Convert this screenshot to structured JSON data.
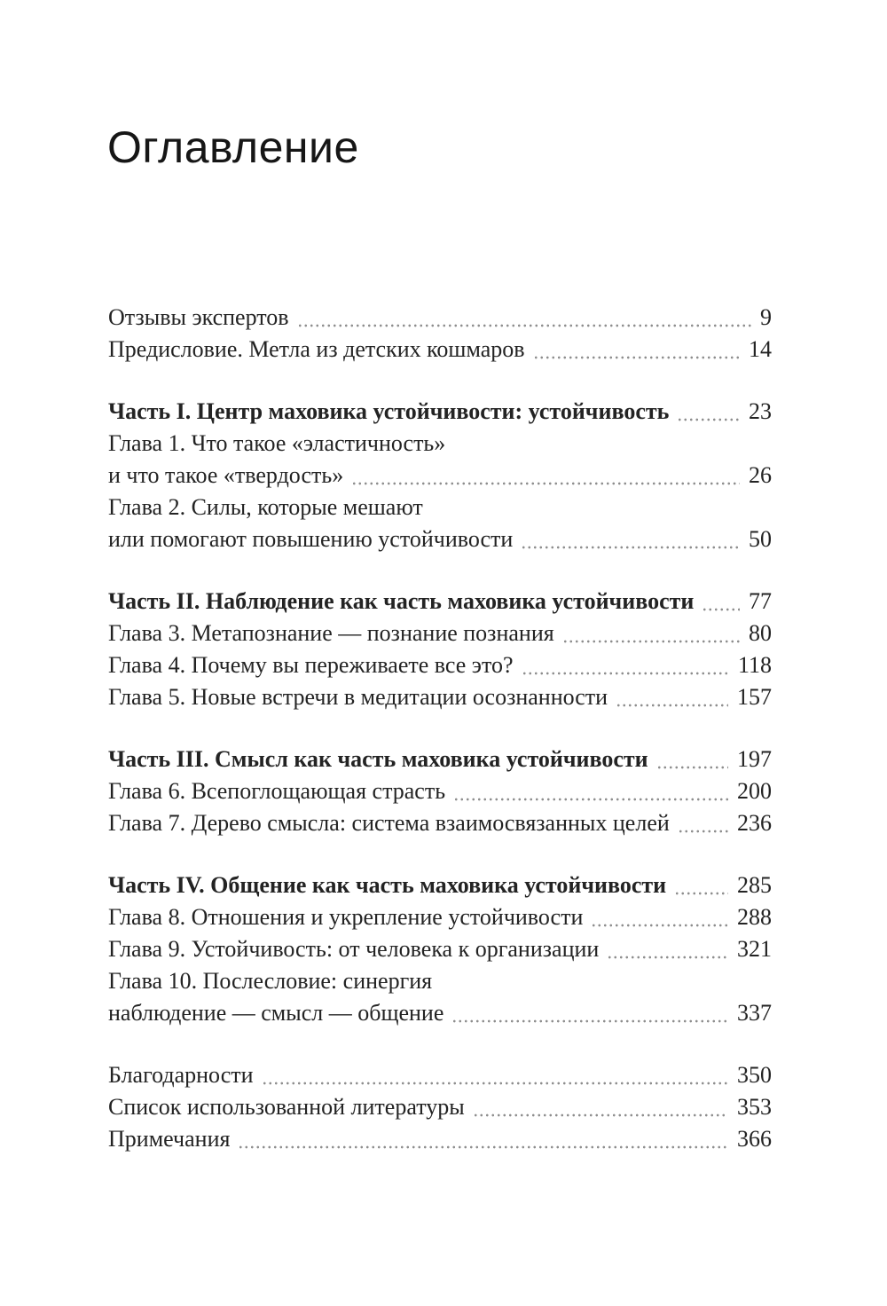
{
  "colors": {
    "text": "#232323",
    "title": "#161616",
    "dots": "#8d8d8d",
    "background": "#ffffff"
  },
  "page": {
    "title": "Оглавление"
  },
  "toc": {
    "groups": [
      {
        "rows": [
          {
            "text": "Отзывы экспертов",
            "page": "9",
            "bold": false
          },
          {
            "text": "Предисловие. Метла из детских кошмаров",
            "page": "14",
            "bold": false
          }
        ]
      },
      {
        "rows": [
          {
            "text": "Часть I. Центр маховика устойчивости: устойчивость",
            "page": "23",
            "bold": true
          },
          {
            "text": "Глава 1. Что такое «эластичность»",
            "page": null,
            "bold": false
          },
          {
            "text": "и что такое «твердость»",
            "page": "26",
            "bold": false
          },
          {
            "text": "Глава 2. Силы, которые мешают",
            "page": null,
            "bold": false
          },
          {
            "text": "или помогают повышению устойчивости",
            "page": "50",
            "bold": false
          }
        ]
      },
      {
        "rows": [
          {
            "text": "Часть II. Наблюдение как часть маховика устойчивости",
            "page": "77",
            "bold": true
          },
          {
            "text": "Глава 3. Метапознание — познание познания",
            "page": "80",
            "bold": false
          },
          {
            "text": "Глава 4. Почему вы переживаете все это?",
            "page": "118",
            "bold": false
          },
          {
            "text": "Глава 5. Новые встречи в медитации осознанности",
            "page": "157",
            "bold": false
          }
        ]
      },
      {
        "rows": [
          {
            "text": "Часть III. Смысл как часть маховика устойчивости",
            "page": "197",
            "bold": true
          },
          {
            "text": "Глава 6. Всепоглощающая страсть",
            "page": "200",
            "bold": false
          },
          {
            "text": "Глава 7. Дерево смысла: система взаимосвязанных целей",
            "page": "236",
            "bold": false
          }
        ]
      },
      {
        "rows": [
          {
            "text": "Часть IV. Общение как часть маховика устойчивости",
            "page": "285",
            "bold": true
          },
          {
            "text": "Глава 8. Отношения и укрепление устойчивости",
            "page": "288",
            "bold": false
          },
          {
            "text": "Глава 9. Устойчивость: от человека к организации",
            "page": "321",
            "bold": false
          },
          {
            "text": "Глава 10. Послесловие: синергия",
            "page": null,
            "bold": false
          },
          {
            "text": "наблюдение — смысл — общение",
            "page": "337",
            "bold": false
          }
        ]
      },
      {
        "rows": [
          {
            "text": "Благодарности",
            "page": "350",
            "bold": false
          },
          {
            "text": "Список использованной литературы",
            "page": "353",
            "bold": false
          },
          {
            "text": "Примечания",
            "page": "366",
            "bold": false
          }
        ]
      }
    ]
  }
}
